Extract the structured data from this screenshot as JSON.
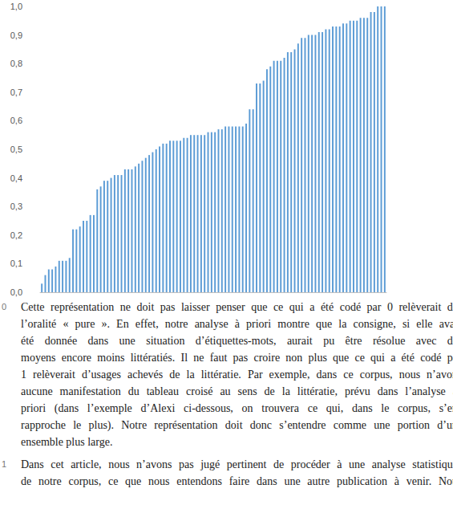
{
  "chart_data": {
    "type": "bar",
    "categories": [
      null,
      null,
      null,
      null,
      null,
      null,
      null,
      null,
      null,
      null,
      null,
      null,
      null,
      null,
      null,
      null,
      null,
      null,
      null,
      null,
      null,
      null,
      null,
      null,
      null,
      null,
      null,
      null,
      null,
      null,
      null,
      null,
      null,
      null,
      null,
      null,
      null,
      null,
      null,
      null,
      null,
      null,
      null,
      null,
      null,
      null,
      null,
      null,
      null,
      null,
      null,
      null,
      null,
      null,
      null,
      null,
      null,
      null,
      null,
      null,
      null,
      null,
      null,
      null,
      null,
      null,
      null,
      null,
      null,
      null,
      null,
      null,
      null,
      null,
      null,
      null,
      null,
      null,
      null,
      null,
      null,
      null,
      null,
      null,
      null,
      null,
      null,
      null,
      null,
      null,
      null,
      null,
      null,
      null,
      null,
      null,
      null,
      null,
      null,
      null
    ],
    "values": [
      0.03,
      0.06,
      0.08,
      0.08,
      0.09,
      0.11,
      0.11,
      0.11,
      0.12,
      0.22,
      0.22,
      0.23,
      0.25,
      0.25,
      0.27,
      0.27,
      0.36,
      0.37,
      0.39,
      0.39,
      0.4,
      0.41,
      0.41,
      0.41,
      0.43,
      0.43,
      0.43,
      0.44,
      0.45,
      0.46,
      0.47,
      0.48,
      0.49,
      0.5,
      0.51,
      0.52,
      0.52,
      0.53,
      0.53,
      0.53,
      0.53,
      0.54,
      0.54,
      0.55,
      0.55,
      0.55,
      0.55,
      0.55,
      0.56,
      0.56,
      0.56,
      0.57,
      0.57,
      0.58,
      0.58,
      0.58,
      0.58,
      0.58,
      0.58,
      0.59,
      0.64,
      0.64,
      0.73,
      0.73,
      0.74,
      0.78,
      0.79,
      0.81,
      0.81,
      0.81,
      0.82,
      0.84,
      0.84,
      0.85,
      0.87,
      0.89,
      0.89,
      0.9,
      0.9,
      0.9,
      0.91,
      0.91,
      0.92,
      0.92,
      0.93,
      0.93,
      0.93,
      0.94,
      0.94,
      0.95,
      0.95,
      0.95,
      0.96,
      0.96,
      0.96,
      0.98,
      0.98,
      1.0,
      1.0,
      1.0
    ],
    "color": "#5b9bd5",
    "ylim": [
      0,
      1
    ],
    "yticks": [
      {
        "value": 0,
        "label": "0,0"
      },
      {
        "value": 0.1,
        "label": "0,1"
      },
      {
        "value": 0.2,
        "label": "0,2"
      },
      {
        "value": 0.3,
        "label": "0,3"
      },
      {
        "value": 0.4,
        "label": "0,4"
      },
      {
        "value": 0.5,
        "label": "0,5"
      },
      {
        "value": 0.6,
        "label": "0,6"
      },
      {
        "value": 0.7,
        "label": "0,7"
      },
      {
        "value": 0.8,
        "label": "0,8"
      },
      {
        "value": 0.9,
        "label": "0,9"
      },
      {
        "value": 1,
        "label": "1,0"
      }
    ],
    "grid": false,
    "tick_labels": "y"
  },
  "paragraphs": [
    {
      "number": "0",
      "lines": [
        "Cette représentation ne doit pas laisser penser que ce qui a été codé par 0 relèverait de",
        "l’oralité « pure ». En effet, notre analyse à priori montre que la consigne, si elle avai",
        "été donnée dans une situation d’étiquettes-mots, aurait pu être résolue avec de",
        "moyens encore moins littératiés. Il ne faut pas croire non plus que ce qui a été codé pa",
        "1 relèverait d’usages achevés de la littératie. Par exemple, dans ce corpus, nous n’avon",
        "aucune manifestation du tableau croisé au sens de la littératie, prévu dans l’analyse à",
        "priori (dans l’exemple d’Alexi ci-dessous, on trouvera ce qui, dans le corpus, s’en",
        "rapproche le plus). Notre représentation doit donc s’entendre comme une portion d’un",
        "ensemble plus large."
      ]
    },
    {
      "number": "1",
      "lines": [
        "Dans cet article, nous n’avons pas jugé pertinent de procéder à une analyse statistique",
        "de notre corpus, ce que nous entendons faire dans une autre publication à venir. Nou"
      ]
    }
  ]
}
